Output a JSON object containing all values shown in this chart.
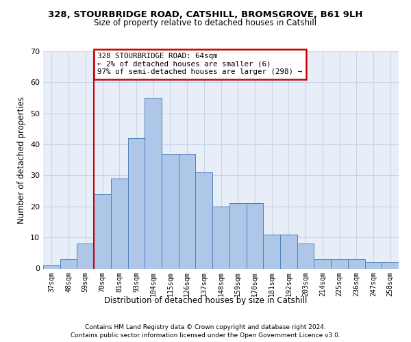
{
  "title1": "328, STOURBRIDGE ROAD, CATSHILL, BROMSGROVE, B61 9LH",
  "title2": "Size of property relative to detached houses in Catshill",
  "xlabel": "Distribution of detached houses by size in Catshill",
  "ylabel": "Number of detached properties",
  "footnote1": "Contains HM Land Registry data © Crown copyright and database right 2024.",
  "footnote2": "Contains public sector information licensed under the Open Government Licence v3.0.",
  "annotation_line1": "328 STOURBRIDGE ROAD: 64sqm",
  "annotation_line2": "← 2% of detached houses are smaller (6)",
  "annotation_line3": "97% of semi-detached houses are larger (298) →",
  "bar_values": [
    1,
    3,
    8,
    24,
    29,
    42,
    55,
    37,
    37,
    31,
    20,
    21,
    21,
    11,
    11,
    8,
    3,
    3,
    3,
    2,
    2
  ],
  "bar_labels": [
    "37sqm",
    "48sqm",
    "59sqm",
    "70sqm",
    "81sqm",
    "93sqm",
    "104sqm",
    "115sqm",
    "126sqm",
    "137sqm",
    "148sqm",
    "159sqm",
    "170sqm",
    "181sqm",
    "192sqm",
    "203sqm",
    "214sqm",
    "225sqm",
    "236sqm",
    "247sqm",
    "258sqm"
  ],
  "bar_color": "#aec6e8",
  "bar_edge_color": "#4f81bd",
  "vline_x_index": 2.5,
  "annotation_box_color": "#ffffff",
  "annotation_box_edge": "#cc0000",
  "vline_color": "#cc0000",
  "ylim": [
    0,
    70
  ],
  "yticks": [
    0,
    10,
    20,
    30,
    40,
    50,
    60,
    70
  ],
  "grid_color": "#c8d4e8",
  "bg_color": "#e8eef8"
}
